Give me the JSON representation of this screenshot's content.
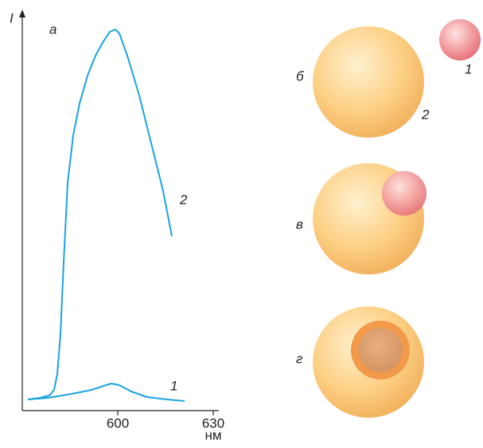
{
  "chart_data": {
    "type": "line",
    "panel_label": "а",
    "y_label": "I",
    "x_label": "нм",
    "xlim": [
      570,
      630
    ],
    "xticks": [
      600,
      630
    ],
    "ylim": [
      0,
      100
    ],
    "series": [
      {
        "name": "1",
        "color": "#1aa3e0",
        "x": [
          571.75,
          578,
          585.5,
          591.75,
          595.5,
          598,
          600.5,
          604.25,
          609.25,
          615.5,
          621
        ],
        "values": [
          2.6,
          3,
          4,
          5,
          6,
          6.6,
          6.2,
          4.6,
          3.2,
          2.6,
          2.2
        ]
      },
      {
        "name": "2",
        "color": "#1aa3e0",
        "x": [
          571.75,
          575.5,
          578.5,
          580,
          581,
          582,
          583,
          584.25,
          586,
          588,
          590.5,
          593,
          595.5,
          597.5,
          599.25,
          600.5,
          603,
          606.75,
          610.5,
          614.25,
          617
        ],
        "values": [
          2.6,
          3,
          3.6,
          5,
          9,
          19,
          37,
          57,
          69,
          77,
          84,
          89,
          92.6,
          95,
          95.6,
          94.6,
          89,
          79,
          67,
          55,
          43.6
        ]
      }
    ]
  },
  "diagram": {
    "panels": [
      {
        "label": "б",
        "numbers": [
          "1",
          "2"
        ]
      },
      {
        "label": "в"
      },
      {
        "label": "г"
      }
    ]
  }
}
